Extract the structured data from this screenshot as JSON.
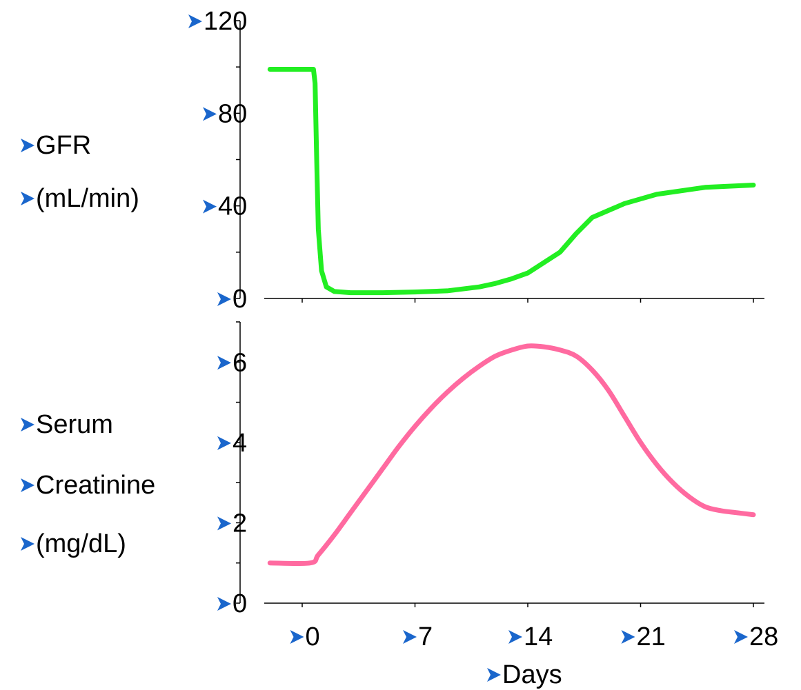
{
  "colors": {
    "bullet": "#1a66cc",
    "axis": "#000000"
  },
  "chart_data": [
    {
      "type": "line",
      "ylabel_lines": [
        "GFR",
        "(mL/min)"
      ],
      "ylim": [
        0,
        120
      ],
      "yticks": [
        "120",
        "80",
        "40",
        "0"
      ],
      "xlim": [
        -2,
        28
      ],
      "series": [
        {
          "color": "#22ee22",
          "x": [
            -2,
            0.7,
            0.8,
            0.9,
            1.0,
            1.2,
            1.5,
            2,
            3,
            5,
            7,
            9,
            11,
            12,
            13,
            14,
            16,
            17,
            18,
            19,
            20,
            22,
            25,
            28
          ],
          "y": [
            99,
            99,
            93,
            60,
            30,
            12,
            5,
            3,
            2.5,
            2.5,
            2.8,
            3.3,
            5,
            6.5,
            8.5,
            11,
            20,
            28,
            35,
            38,
            41,
            45,
            48,
            49
          ]
        }
      ]
    },
    {
      "type": "line",
      "ylabel_lines": [
        "Serum",
        "Creatinine",
        "(mg/dL)"
      ],
      "ylim": [
        0,
        7
      ],
      "yticks": [
        "6",
        "4",
        "2",
        "0"
      ],
      "xlabel": "Days",
      "xticks": [
        "0",
        "7",
        "14",
        "21",
        "28"
      ],
      "xlim": [
        -2,
        28
      ],
      "series": [
        {
          "color": "#ff6aa0",
          "x": [
            -2,
            0.5,
            1,
            2,
            3,
            4,
            5,
            6,
            7,
            8,
            9,
            10,
            11,
            12,
            13,
            14,
            15,
            16,
            17,
            18,
            19,
            20,
            21,
            22,
            23,
            24,
            25,
            26,
            27,
            28
          ],
          "y": [
            1.0,
            1.0,
            1.2,
            1.7,
            2.25,
            2.8,
            3.35,
            3.9,
            4.4,
            4.85,
            5.25,
            5.6,
            5.9,
            6.15,
            6.3,
            6.4,
            6.38,
            6.3,
            6.15,
            5.8,
            5.3,
            4.65,
            4.0,
            3.45,
            3.0,
            2.65,
            2.4,
            2.3,
            2.25,
            2.2
          ]
        }
      ]
    }
  ]
}
